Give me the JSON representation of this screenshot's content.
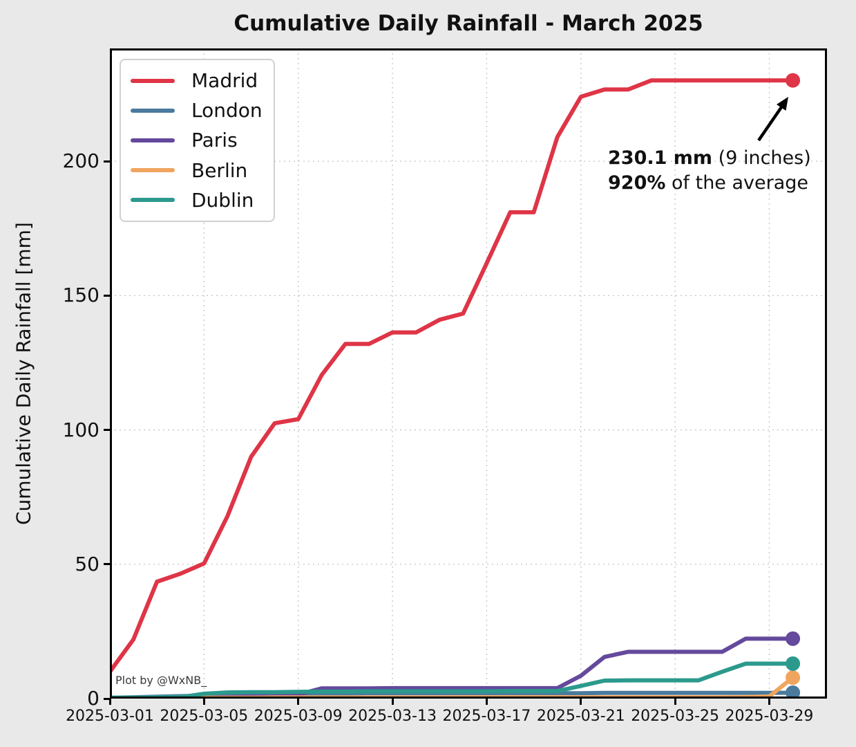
{
  "title": "Cumulative Daily Rainfall - March 2025",
  "credit": "Plot by @WxNB_",
  "annotation": {
    "line1_bold": "230.1 mm",
    "line1_rest": " (9 inches)",
    "line2_bold": "920%",
    "line2_rest": " of the average"
  },
  "chart_data": {
    "type": "line",
    "title": "Cumulative Daily Rainfall - March 2025",
    "xlabel": "",
    "ylabel": "Cumulative Daily Rainfall [mm]",
    "grid": true,
    "legend_position": "upper-left",
    "ylim": [
      0,
      242
    ],
    "xlim_days": [
      0,
      30.45
    ],
    "y_ticks": [
      0,
      50,
      100,
      150,
      200
    ],
    "x_tick_days": [
      0,
      4,
      8,
      12,
      16,
      20,
      24,
      28
    ],
    "x_tick_labels": [
      "2025-03-01",
      "2025-03-05",
      "2025-03-09",
      "2025-03-13",
      "2025-03-17",
      "2025-03-21",
      "2025-03-25",
      "2025-03-29"
    ],
    "dates": [
      "2025-03-01",
      "2025-03-02",
      "2025-03-03",
      "2025-03-04",
      "2025-03-05",
      "2025-03-06",
      "2025-03-07",
      "2025-03-08",
      "2025-03-09",
      "2025-03-10",
      "2025-03-11",
      "2025-03-12",
      "2025-03-13",
      "2025-03-14",
      "2025-03-15",
      "2025-03-16",
      "2025-03-17",
      "2025-03-18",
      "2025-03-19",
      "2025-03-20",
      "2025-03-21",
      "2025-03-22",
      "2025-03-23",
      "2025-03-24",
      "2025-03-25",
      "2025-03-26",
      "2025-03-27",
      "2025-03-28",
      "2025-03-29",
      "2025-03-30"
    ],
    "series": [
      {
        "name": "Madrid",
        "color": "#de3547",
        "values": [
          10,
          22,
          43.5,
          46.5,
          50.3,
          68,
          90,
          102.5,
          104,
          120.5,
          132,
          132,
          136.3,
          136.3,
          141,
          143.3,
          162,
          181,
          181,
          209,
          224,
          226.7,
          226.7,
          230.1,
          230.1,
          230.1,
          230.1,
          230.1,
          230.1,
          230.1
        ]
      },
      {
        "name": "London",
        "color": "#4a7b9d",
        "values": [
          0.3,
          0.5,
          0.7,
          0.9,
          1.1,
          1.3,
          1.5,
          1.6,
          1.7,
          1.8,
          1.9,
          2,
          2,
          2,
          2,
          2,
          2,
          2,
          2,
          2,
          2,
          2.1,
          2.1,
          2.1,
          2.1,
          2.1,
          2.1,
          2.1,
          2.1,
          2.2
        ]
      },
      {
        "name": "Paris",
        "color": "#64499c",
        "values": [
          0.2,
          0.2,
          0.3,
          0.4,
          0.5,
          0.6,
          0.8,
          1,
          1.5,
          3.8,
          3.8,
          3.8,
          3.9,
          3.9,
          3.9,
          3.9,
          3.9,
          3.9,
          3.9,
          3.9,
          8.5,
          15.5,
          17.4,
          17.4,
          17.4,
          17.4,
          17.4,
          22.3,
          22.3,
          22.3
        ]
      },
      {
        "name": "Berlin",
        "color": "#f0a55f",
        "values": [
          0.2,
          0.2,
          0.2,
          0.3,
          0.3,
          0.3,
          0.3,
          0.4,
          0.4,
          0.4,
          0.4,
          0.4,
          0.4,
          0.4,
          0.4,
          0.5,
          0.5,
          0.5,
          0.5,
          0.5,
          0.5,
          0.5,
          0.5,
          0.5,
          0.5,
          0.5,
          0.5,
          0.6,
          0.8,
          7.8
        ]
      },
      {
        "name": "Dublin",
        "color": "#2b9a8d",
        "values": [
          0.3,
          0.3,
          0.4,
          0.5,
          1.8,
          2.3,
          2.4,
          2.4,
          2.5,
          2.6,
          2.6,
          2.7,
          2.7,
          2.7,
          2.7,
          2.7,
          2.7,
          2.8,
          2.8,
          2.8,
          4.7,
          6.7,
          6.8,
          6.8,
          6.8,
          6.8,
          10,
          13,
          13,
          13
        ]
      }
    ],
    "end_markers": true,
    "annotation_text": "230.1 mm (9 inches)\n920% of the average",
    "annotation_points_to": {
      "date": "2025-03-30",
      "series": "Madrid",
      "value": 230.1
    }
  },
  "colors": {
    "figure_background": "#e9e9e9",
    "axes_background": "#ffffff",
    "grid": "#c4c4c4",
    "spine": "#000000"
  }
}
